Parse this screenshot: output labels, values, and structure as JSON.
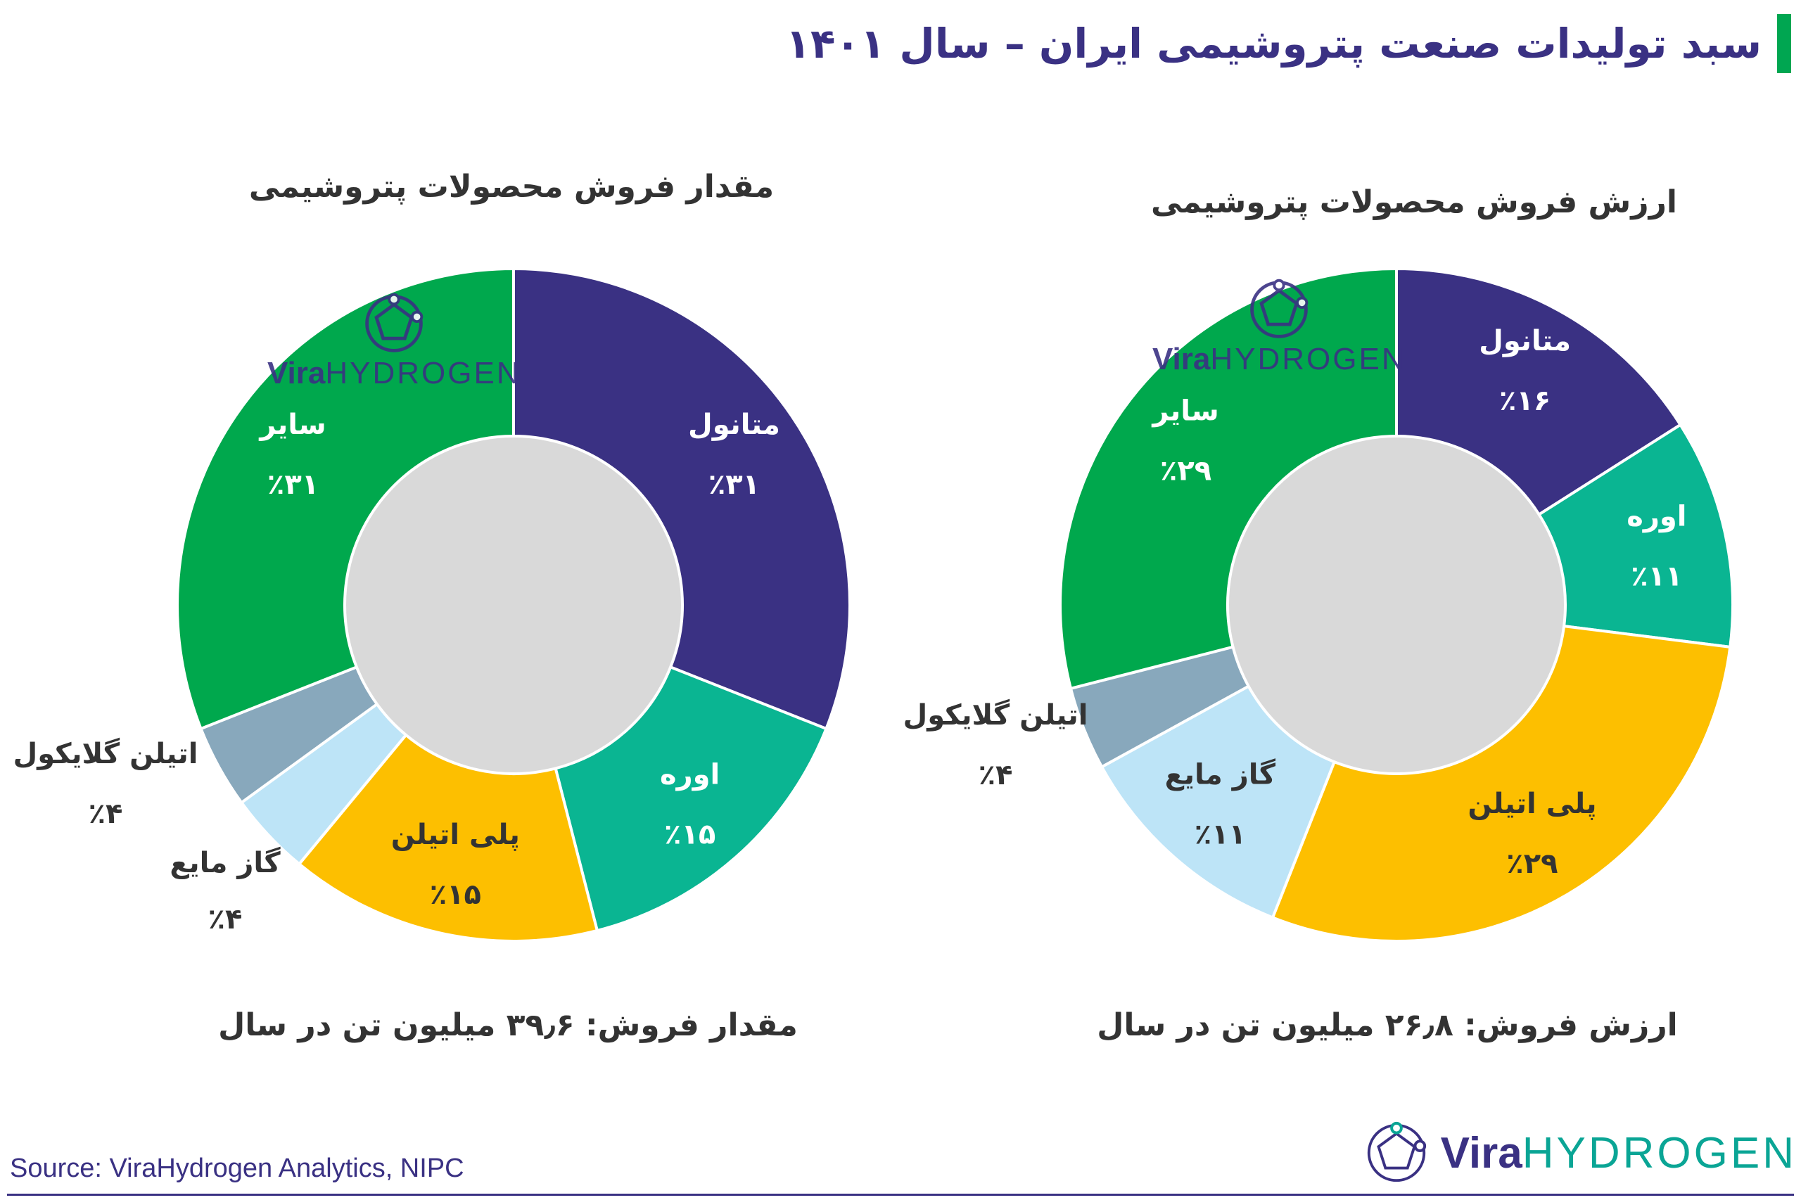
{
  "title": "سبد تولیدات صنعت پتروشیمی ایران – سال ۱۴۰۱",
  "source": "Source: ViraHydrogen Analytics, NIPC",
  "brand": {
    "vira": "Vira",
    "hydrogen": "HYDROGEN"
  },
  "colors": {
    "methanol": "#3a3183",
    "urea": "#0ab592",
    "polyethylene": "#fdbf00",
    "lpg": "#bde4f7",
    "ethylene_glycol": "#88a8bc",
    "other": "#00a84d",
    "hole": "#d9d9d9",
    "title_accent": "#00a651"
  },
  "chart_data": [
    {
      "type": "pie",
      "title": "مقدار فروش محصولات پتروشیمی",
      "total_label": "مقدار فروش: ۳۹٫۶ میلیون تن در سال",
      "slices": [
        {
          "key": "methanol",
          "name": "متانول",
          "value": 31,
          "label": "٪۳۱"
        },
        {
          "key": "urea",
          "name": "اوره",
          "value": 15,
          "label": "٪۱۵"
        },
        {
          "key": "polyethylene",
          "name": "پلی اتیلن",
          "value": 15,
          "label": "٪۱۵"
        },
        {
          "key": "lpg",
          "name": "گاز مایع",
          "value": 4,
          "label": "٪۴"
        },
        {
          "key": "ethylene_glycol",
          "name": "اتیلن گلایکول",
          "value": 4,
          "label": "٪۴"
        },
        {
          "key": "other",
          "name": "سایر",
          "value": 31,
          "label": "٪۳۱"
        }
      ]
    },
    {
      "type": "pie",
      "title": "ارزش فروش محصولات پتروشیمی",
      "total_label": "ارزش فروش: ۲۶٫۸ میلیون تن در سال",
      "slices": [
        {
          "key": "methanol",
          "name": "متانول",
          "value": 16,
          "label": "٪۱۶"
        },
        {
          "key": "urea",
          "name": "اوره",
          "value": 11,
          "label": "٪۱۱"
        },
        {
          "key": "polyethylene",
          "name": "پلی اتیلن",
          "value": 29,
          "label": "٪۲۹"
        },
        {
          "key": "lpg",
          "name": "گاز مایع",
          "value": 11,
          "label": "٪۱۱"
        },
        {
          "key": "ethylene_glycol",
          "name": "اتیلن گلایکول",
          "value": 4,
          "label": "٪۴"
        },
        {
          "key": "other",
          "name": "سایر",
          "value": 29,
          "label": "٪۲۹"
        }
      ]
    }
  ]
}
